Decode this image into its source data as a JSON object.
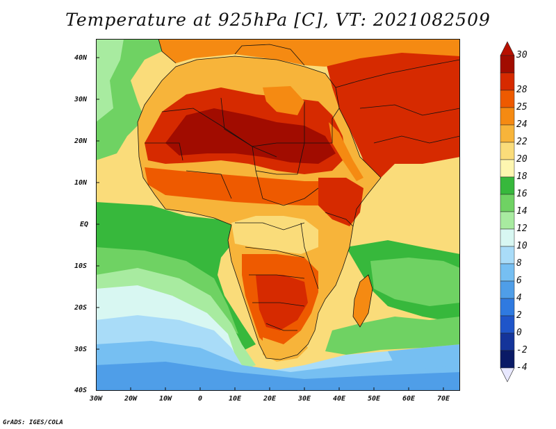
{
  "title": "Temperature at 925hPa [C], VT: 2021082509",
  "map": {
    "lat_labels": [
      "40N",
      "30N",
      "20N",
      "10N",
      "EQ",
      "10S",
      "20S",
      "30S",
      "40S"
    ],
    "lon_labels": [
      "30W",
      "20W",
      "10W",
      "0",
      "10E",
      "20E",
      "30E",
      "40E",
      "50E",
      "60E",
      "70E"
    ],
    "region": "Africa, Arabian Peninsula and surrounding oceans"
  },
  "colorbar": {
    "levels": [
      "30",
      "28",
      "25",
      "24",
      "22",
      "20",
      "18",
      "16",
      "14",
      "12",
      "10",
      "8",
      "6",
      "4",
      "2",
      "0",
      "-2",
      "-4"
    ],
    "colors": [
      "#a10c00",
      "#d62a00",
      "#ee5a00",
      "#f58a12",
      "#f7b43a",
      "#fadc7a",
      "#fdf6b0",
      "#37b83c",
      "#6fd263",
      "#a8eba0",
      "#d8f7f2",
      "#a9dcf8",
      "#76bff2",
      "#4f9ee8",
      "#2f7ae0",
      "#1f55c9",
      "#14349a",
      "#0a1a66"
    ],
    "top_arrow_color": "#b71000",
    "bottom_arrow_color": "#e8e8ff"
  },
  "footer": "GrADS: IGES/COLA"
}
